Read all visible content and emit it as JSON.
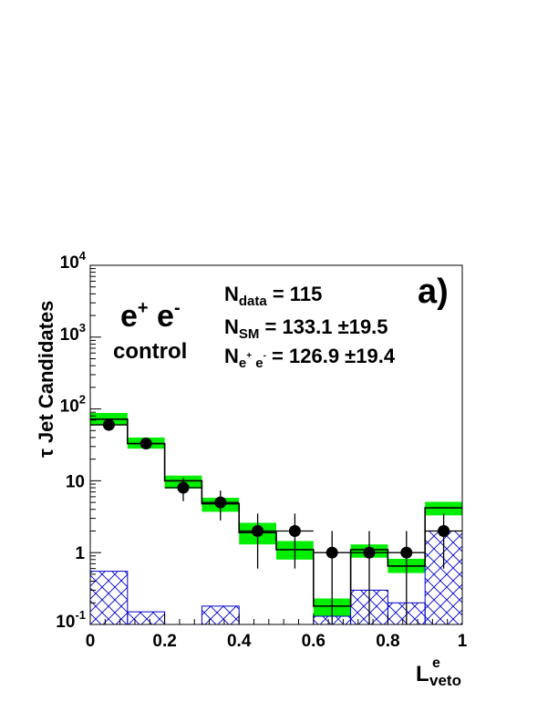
{
  "chart_data": {
    "type": "bar",
    "panel_label": "a)",
    "ylabel": "τ Jet Candidates",
    "xlabel": {
      "main": "L",
      "sub": "veto",
      "sup": "e"
    },
    "xlim": [
      0,
      1
    ],
    "ylim": [
      0.1,
      10000
    ],
    "yscale": "log",
    "x_ticks": [
      "0",
      "0.2",
      "0.4",
      "0.6",
      "0.8",
      "1"
    ],
    "y_ticks": [
      {
        "value": 0.1,
        "base": "10",
        "exp": "-1",
        "plain": ""
      },
      {
        "value": 1,
        "base": "",
        "exp": "",
        "plain": "1"
      },
      {
        "value": 10,
        "base": "",
        "exp": "",
        "plain": "10"
      },
      {
        "value": 100,
        "base": "10",
        "exp": "2",
        "plain": ""
      },
      {
        "value": 1000,
        "base": "10",
        "exp": "3",
        "plain": ""
      },
      {
        "value": 10000,
        "base": "10",
        "exp": "4",
        "plain": ""
      }
    ],
    "bin_edges": [
      0,
      0.1,
      0.2,
      0.3,
      0.4,
      0.5,
      0.6,
      0.7,
      0.8,
      0.9,
      1.0
    ],
    "series": [
      {
        "role": "sm_prediction",
        "values": [
          72,
          33,
          10,
          4.8,
          1.9,
          1.1,
          0.18,
          1.1,
          0.65,
          4.2
        ]
      },
      {
        "role": "sm_uncertainty_low",
        "values": [
          60,
          28,
          7.8,
          3.7,
          1.3,
          0.8,
          0.13,
          0.85,
          0.52,
          3.3
        ]
      },
      {
        "role": "sm_uncertainty_high",
        "values": [
          88,
          40,
          11.8,
          5.8,
          2.6,
          1.45,
          0.23,
          1.3,
          0.82,
          5.1
        ]
      },
      {
        "role": "background",
        "values": [
          0.55,
          0.15,
          0.1,
          0.18,
          0.1,
          0.1,
          0.13,
          0.3,
          0.2,
          2.0
        ]
      },
      {
        "role": "data",
        "x": [
          0.05,
          0.15,
          0.25,
          0.35,
          0.45,
          0.55,
          0.65,
          0.75,
          0.85,
          0.95
        ],
        "values": [
          60,
          33,
          8,
          5,
          2,
          2,
          1,
          1,
          1,
          2
        ],
        "err_low": [
          52,
          28,
          5.2,
          2.8,
          0.6,
          0.6,
          0.1,
          0.1,
          0.1,
          0.6
        ],
        "err_high": [
          70,
          39,
          11,
          7.3,
          3.5,
          3.5,
          2.0,
          2.0,
          2.0,
          3.5
        ]
      }
    ],
    "title": {
      "main": "e",
      "sup1": "+",
      "mid": " e",
      "sup2": "-",
      "sub": "control"
    },
    "stats": [
      {
        "label": "N",
        "sub": "data",
        "sub_sups": [],
        "value": " = 115"
      },
      {
        "label": "N",
        "sub": "SM",
        "sub_sups": [],
        "value": " = 133.1 ±19.5"
      },
      {
        "label": "N",
        "sub": "e",
        "sub_sups": [
          "+",
          " e",
          "-"
        ],
        "value": " = 126.9 ±19.4"
      }
    ],
    "colors": {
      "band": "#00ee00",
      "hatch": "#0000cc",
      "line": "#000000"
    }
  }
}
